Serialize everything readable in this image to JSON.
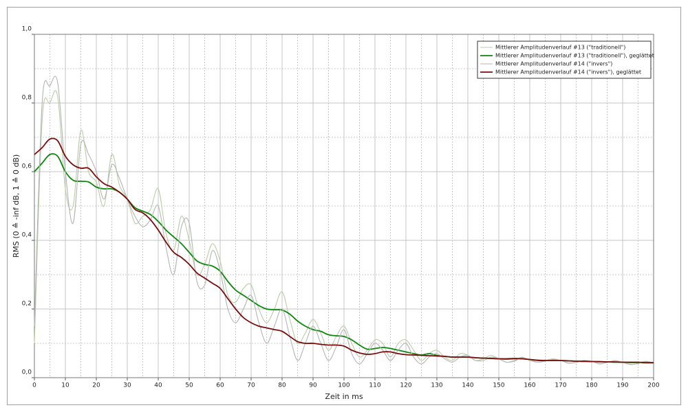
{
  "chart_data": {
    "type": "line",
    "x_label": "Zeit in ms",
    "y_label": "RMS (0 ≙ -inf dB, 1 ≙ 0 dB)",
    "x": [
      0,
      2.5,
      5,
      7.5,
      10,
      12.5,
      15,
      17.5,
      20,
      22.5,
      25,
      27.5,
      30,
      32.5,
      35,
      37.5,
      40,
      42.5,
      45,
      47.5,
      50,
      52.5,
      55,
      57.5,
      60,
      62.5,
      65,
      67.5,
      70,
      72.5,
      75,
      77.5,
      80,
      82.5,
      85,
      87.5,
      90,
      92.5,
      95,
      97.5,
      100,
      102.5,
      105,
      107.5,
      110,
      112.5,
      115,
      117.5,
      120,
      122.5,
      125,
      127.5,
      130,
      132.5,
      135,
      137.5,
      140,
      142.5,
      145,
      147.5,
      150,
      152.5,
      155,
      157.5,
      160,
      162.5,
      165,
      167.5,
      170,
      172.5,
      175,
      177.5,
      180,
      182.5,
      185,
      187.5,
      190,
      192.5,
      195,
      197.5,
      200
    ],
    "series": [
      {
        "name": "Mittlerer Amplitudenverlauf #13 (\"traditionell\")",
        "color": "#b9cca8",
        "values": [
          0.1,
          0.75,
          0.8,
          0.82,
          0.55,
          0.5,
          0.72,
          0.6,
          0.57,
          0.5,
          0.65,
          0.56,
          0.52,
          0.45,
          0.47,
          0.49,
          0.55,
          0.42,
          0.37,
          0.47,
          0.4,
          0.3,
          0.33,
          0.39,
          0.34,
          0.24,
          0.22,
          0.26,
          0.27,
          0.2,
          0.16,
          0.2,
          0.25,
          0.17,
          0.1,
          0.13,
          0.17,
          0.13,
          0.08,
          0.12,
          0.15,
          0.1,
          0.06,
          0.08,
          0.11,
          0.1,
          0.06,
          0.1,
          0.11,
          0.08,
          0.05,
          0.07,
          0.08,
          0.06,
          0.05,
          0.07,
          0.065,
          0.05,
          0.055,
          0.065,
          0.055,
          0.045,
          0.05,
          0.06,
          0.05,
          0.045,
          0.05,
          0.055,
          0.05,
          0.042,
          0.045,
          0.05,
          0.048,
          0.04,
          0.045,
          0.05,
          0.045,
          0.038,
          0.042,
          0.048,
          0.042
        ]
      },
      {
        "name": "Mittlerer Amplitudenverlauf #13 (\"traditionell\"), geglättet",
        "color": "#0b870b",
        "values": [
          0.6,
          0.625,
          0.65,
          0.645,
          0.6,
          0.575,
          0.572,
          0.57,
          0.555,
          0.55,
          0.55,
          0.54,
          0.52,
          0.495,
          0.485,
          0.475,
          0.455,
          0.43,
          0.41,
          0.39,
          0.365,
          0.34,
          0.33,
          0.325,
          0.31,
          0.28,
          0.255,
          0.24,
          0.225,
          0.21,
          0.2,
          0.198,
          0.197,
          0.185,
          0.165,
          0.15,
          0.14,
          0.135,
          0.125,
          0.122,
          0.12,
          0.11,
          0.095,
          0.083,
          0.085,
          0.088,
          0.085,
          0.08,
          0.075,
          0.07,
          0.066,
          0.07,
          0.065,
          0.062,
          0.06,
          0.06,
          0.06,
          0.058,
          0.057,
          0.056,
          0.055,
          0.054,
          0.055,
          0.055,
          0.053,
          0.05,
          0.05,
          0.05,
          0.05,
          0.049,
          0.048,
          0.047,
          0.047,
          0.046,
          0.046,
          0.045,
          0.045,
          0.044,
          0.044,
          0.043,
          0.043
        ]
      },
      {
        "name": "Mittlerer Amplitudenverlauf #14 (\"invers\")",
        "color": "#b4b4b4",
        "values": [
          0.15,
          0.8,
          0.85,
          0.86,
          0.6,
          0.45,
          0.68,
          0.65,
          0.6,
          0.52,
          0.62,
          0.58,
          0.52,
          0.47,
          0.44,
          0.46,
          0.5,
          0.38,
          0.3,
          0.44,
          0.45,
          0.28,
          0.27,
          0.37,
          0.31,
          0.2,
          0.16,
          0.2,
          0.24,
          0.16,
          0.1,
          0.15,
          0.2,
          0.12,
          0.05,
          0.1,
          0.15,
          0.1,
          0.05,
          0.09,
          0.14,
          0.07,
          0.04,
          0.07,
          0.1,
          0.08,
          0.05,
          0.08,
          0.1,
          0.06,
          0.04,
          0.06,
          0.07,
          0.055,
          0.045,
          0.06,
          0.065,
          0.05,
          0.05,
          0.06,
          0.055,
          0.045,
          0.048,
          0.058,
          0.052,
          0.045,
          0.048,
          0.053,
          0.05,
          0.043,
          0.044,
          0.05,
          0.047,
          0.041,
          0.044,
          0.049,
          0.044,
          0.039,
          0.041,
          0.047,
          0.043
        ]
      },
      {
        "name": "Mittlerer Amplitudenverlauf #14 (\"invers\"), geglättet",
        "color": "#7a0c0c",
        "values": [
          0.65,
          0.67,
          0.695,
          0.69,
          0.645,
          0.62,
          0.61,
          0.61,
          0.585,
          0.565,
          0.555,
          0.54,
          0.52,
          0.49,
          0.48,
          0.46,
          0.43,
          0.395,
          0.365,
          0.35,
          0.33,
          0.305,
          0.29,
          0.275,
          0.26,
          0.23,
          0.2,
          0.175,
          0.16,
          0.15,
          0.145,
          0.14,
          0.135,
          0.12,
          0.105,
          0.1,
          0.1,
          0.097,
          0.095,
          0.095,
          0.092,
          0.08,
          0.072,
          0.068,
          0.07,
          0.075,
          0.075,
          0.07,
          0.067,
          0.066,
          0.065,
          0.064,
          0.063,
          0.062,
          0.06,
          0.06,
          0.06,
          0.058,
          0.057,
          0.056,
          0.055,
          0.055,
          0.056,
          0.055,
          0.053,
          0.051,
          0.05,
          0.05,
          0.05,
          0.049,
          0.048,
          0.048,
          0.047,
          0.047,
          0.046,
          0.046,
          0.045,
          0.045,
          0.045,
          0.044,
          0.044
        ]
      }
    ],
    "xlim": [
      0,
      200
    ],
    "ylim": [
      0,
      1
    ],
    "xticks": [
      0,
      10,
      20,
      30,
      40,
      50,
      60,
      70,
      80,
      90,
      100,
      110,
      120,
      130,
      140,
      150,
      160,
      170,
      180,
      190,
      200
    ],
    "x_minor_ticks": [
      5,
      15,
      25,
      35,
      45,
      55,
      65,
      75,
      85,
      95,
      105,
      115,
      125,
      135,
      145,
      155,
      165,
      175,
      185,
      195
    ],
    "yticks": [
      {
        "value": 0,
        "label": "0,0"
      },
      {
        "value": 0.2,
        "label": "0,2"
      },
      {
        "value": 0.4,
        "label": "0,4"
      },
      {
        "value": 0.6,
        "label": "0,6"
      },
      {
        "value": 0.8,
        "label": "0,8"
      },
      {
        "value": 1,
        "label": "1,0"
      }
    ],
    "y_minor_ticks": [
      0.1,
      0.3,
      0.5,
      0.7,
      0.9
    ],
    "grid": true,
    "legend": "upper right"
  }
}
